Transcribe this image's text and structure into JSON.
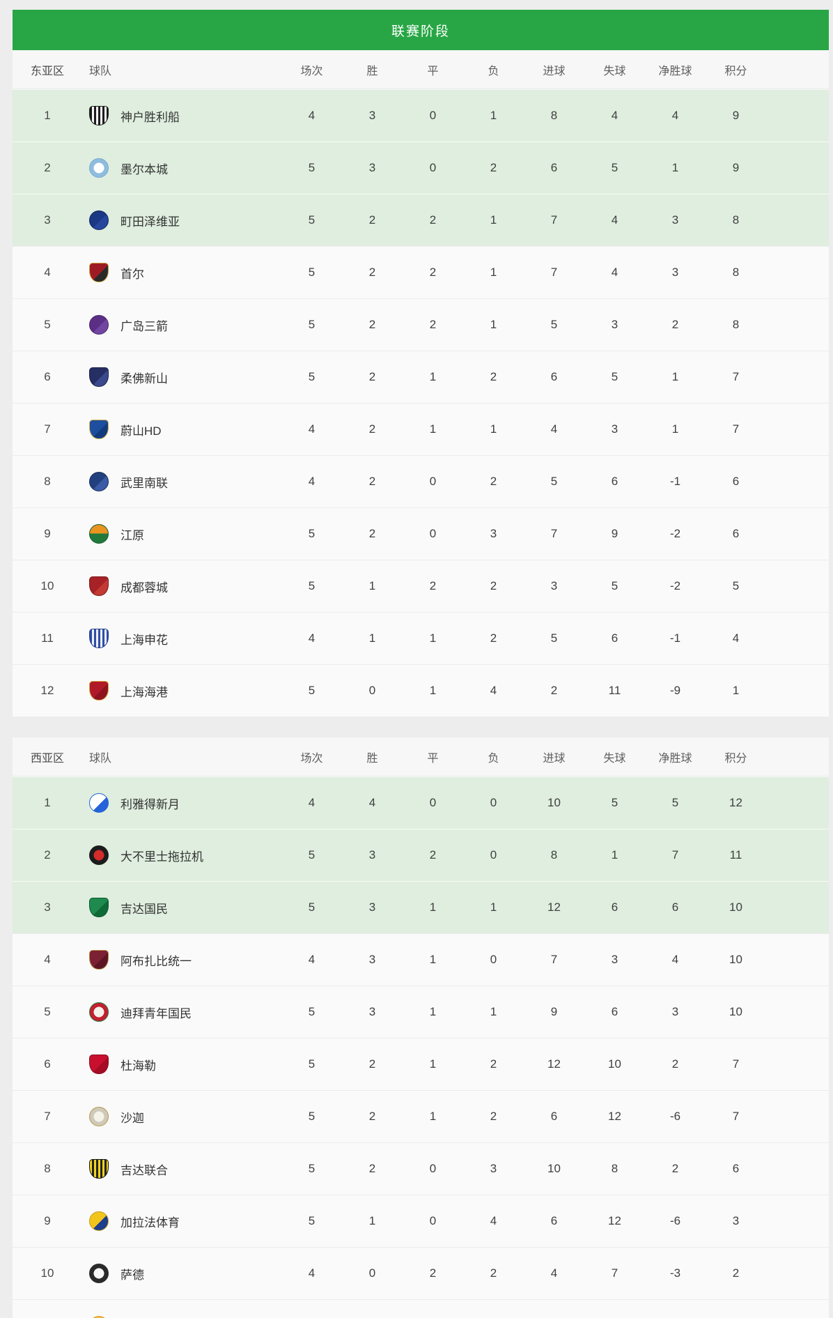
{
  "title": "联赛阶段",
  "team_column_label": "球队",
  "columns": [
    {
      "key": "matches",
      "label": "场次"
    },
    {
      "key": "wins",
      "label": "胜"
    },
    {
      "key": "draws",
      "label": "平"
    },
    {
      "key": "losses",
      "label": "负"
    },
    {
      "key": "goals_for",
      "label": "进球"
    },
    {
      "key": "goals_against",
      "label": "失球"
    },
    {
      "key": "goal_diff",
      "label": "净胜球"
    },
    {
      "key": "points",
      "label": "积分"
    }
  ],
  "colors": {
    "title_bar_green": "#28a645",
    "highlight_row_green": "#dfeede",
    "row_background": "#fafafa",
    "page_background": "#ededed"
  },
  "chart_data": {
    "type": "table",
    "title": "联赛阶段",
    "columns": [
      "场次",
      "胜",
      "平",
      "负",
      "进球",
      "失球",
      "净胜球",
      "积分"
    ],
    "notes": "Two standings groups: 东亚区 (12 teams) and 西亚区 (10 teams); top-3 rows of each group highlighted green"
  },
  "sections": [
    {
      "zone_label": "东亚区",
      "teams": [
        {
          "rank": 1,
          "name": "神户胜利船",
          "highlight": true,
          "logo": {
            "shape": "shield",
            "pattern": "stripes",
            "primary": "#1d1d1d",
            "secondary": "#f5f5f5",
            "border": "#1d1d1d"
          },
          "stats": [
            4,
            3,
            0,
            1,
            8,
            4,
            4,
            9
          ]
        },
        {
          "rank": 2,
          "name": "墨尔本城",
          "highlight": true,
          "logo": {
            "shape": "circle",
            "pattern": "ring",
            "primary": "#8fbcdf",
            "secondary": "#ffffff",
            "border": "#7aa9d4"
          },
          "stats": [
            5,
            3,
            0,
            2,
            6,
            5,
            1,
            9
          ]
        },
        {
          "rank": 3,
          "name": "町田泽维亚",
          "highlight": true,
          "logo": {
            "shape": "circle",
            "pattern": "plain",
            "primary": "#1b3884",
            "secondary": "#27479e",
            "border": "#12265e"
          },
          "stats": [
            5,
            2,
            2,
            1,
            7,
            4,
            3,
            8
          ]
        },
        {
          "rank": 4,
          "name": "首尔",
          "highlight": false,
          "logo": {
            "shape": "shield",
            "pattern": "plain",
            "primary": "#9e1b23",
            "secondary": "#2a2a2a",
            "border": "#caa43c"
          },
          "stats": [
            5,
            2,
            2,
            1,
            7,
            4,
            3,
            8
          ]
        },
        {
          "rank": 5,
          "name": "广岛三箭",
          "highlight": false,
          "logo": {
            "shape": "circle",
            "pattern": "plain",
            "primary": "#5c2f87",
            "secondary": "#7246a0",
            "border": "#47246b"
          },
          "stats": [
            5,
            2,
            2,
            1,
            5,
            3,
            2,
            8
          ]
        },
        {
          "rank": 6,
          "name": "柔佛新山",
          "highlight": false,
          "logo": {
            "shape": "shield",
            "pattern": "plain",
            "primary": "#252f63",
            "secondary": "#3a4a8c",
            "border": "#1a2248"
          },
          "stats": [
            5,
            2,
            1,
            2,
            6,
            5,
            1,
            7
          ]
        },
        {
          "rank": 7,
          "name": "蔚山HD",
          "highlight": false,
          "logo": {
            "shape": "shield",
            "pattern": "plain",
            "primary": "#1d4f9e",
            "secondary": "#123c7e",
            "border": "#d9b64a"
          },
          "stats": [
            4,
            2,
            1,
            1,
            4,
            3,
            1,
            7
          ]
        },
        {
          "rank": 8,
          "name": "武里南联",
          "highlight": false,
          "logo": {
            "shape": "circle",
            "pattern": "plain",
            "primary": "#23407e",
            "secondary": "#3a5ba6",
            "border": "#182c58"
          },
          "stats": [
            4,
            2,
            0,
            2,
            5,
            6,
            -1,
            6
          ]
        },
        {
          "rank": 9,
          "name": "江原",
          "highlight": false,
          "logo": {
            "shape": "circle",
            "pattern": "split",
            "primary": "#e8941f",
            "secondary": "#217a3c",
            "border": "#185c2c"
          },
          "stats": [
            5,
            2,
            0,
            3,
            7,
            9,
            -2,
            6
          ]
        },
        {
          "rank": 10,
          "name": "成都蓉城",
          "highlight": false,
          "logo": {
            "shape": "shield",
            "pattern": "plain",
            "primary": "#a62226",
            "secondary": "#c23a33",
            "border": "#7e161a"
          },
          "stats": [
            5,
            1,
            2,
            2,
            3,
            5,
            -2,
            5
          ]
        },
        {
          "rank": 11,
          "name": "上海申花",
          "highlight": false,
          "logo": {
            "shape": "shield",
            "pattern": "stripes",
            "primary": "#2d4da8",
            "secondary": "#f0f0f5",
            "border": "#24408e"
          },
          "stats": [
            4,
            1,
            1,
            2,
            5,
            6,
            -1,
            4
          ]
        },
        {
          "rank": 12,
          "name": "上海海港",
          "highlight": false,
          "logo": {
            "shape": "shield",
            "pattern": "plain",
            "primary": "#b01a28",
            "secondary": "#8e1220",
            "border": "#d4a63c"
          },
          "stats": [
            5,
            0,
            1,
            4,
            2,
            11,
            -9,
            1
          ]
        }
      ]
    },
    {
      "zone_label": "西亚区",
      "teams": [
        {
          "rank": 1,
          "name": "利雅得新月",
          "highlight": true,
          "logo": {
            "shape": "circle",
            "pattern": "plain",
            "primary": "#ffffff",
            "secondary": "#2563d9",
            "border": "#2563d9"
          },
          "stats": [
            4,
            4,
            0,
            0,
            10,
            5,
            5,
            12
          ]
        },
        {
          "rank": 2,
          "name": "大不里士拖拉机",
          "highlight": true,
          "logo": {
            "shape": "circle",
            "pattern": "ring",
            "primary": "#1c1c1c",
            "secondary": "#d42b2b",
            "border": "#1c1c1c"
          },
          "stats": [
            5,
            3,
            2,
            0,
            8,
            1,
            7,
            11
          ]
        },
        {
          "rank": 3,
          "name": "吉达国民",
          "highlight": true,
          "logo": {
            "shape": "shield",
            "pattern": "plain",
            "primary": "#1f8a4d",
            "secondary": "#0e6a37",
            "border": "#0c5a2e"
          },
          "stats": [
            5,
            3,
            1,
            1,
            12,
            6,
            6,
            10
          ]
        },
        {
          "rank": 4,
          "name": "阿布扎比统一",
          "highlight": false,
          "logo": {
            "shape": "shield",
            "pattern": "plain",
            "primary": "#7c2033",
            "secondary": "#5d1525",
            "border": "#b08a3e"
          },
          "stats": [
            4,
            3,
            1,
            0,
            7,
            3,
            4,
            10
          ]
        },
        {
          "rank": 5,
          "name": "迪拜青年国民",
          "highlight": false,
          "logo": {
            "shape": "circle",
            "pattern": "ring",
            "primary": "#c32030",
            "secondary": "#f2f2ea",
            "border": "#1e7a3c"
          },
          "stats": [
            5,
            3,
            1,
            1,
            9,
            6,
            3,
            10
          ]
        },
        {
          "rank": 6,
          "name": "杜海勒",
          "highlight": false,
          "logo": {
            "shape": "shield",
            "pattern": "plain",
            "primary": "#c8102e",
            "secondary": "#a50d25",
            "border": "#8c0a1f"
          },
          "stats": [
            5,
            2,
            1,
            2,
            12,
            10,
            2,
            7
          ]
        },
        {
          "rank": 7,
          "name": "沙迦",
          "highlight": false,
          "logo": {
            "shape": "circle",
            "pattern": "ring",
            "primary": "#cfc9ba",
            "secondary": "#f5f2e8",
            "border": "#b89a4a"
          },
          "stats": [
            5,
            2,
            1,
            2,
            6,
            12,
            -6,
            7
          ]
        },
        {
          "rank": 8,
          "name": "吉达联合",
          "highlight": false,
          "logo": {
            "shape": "shield",
            "pattern": "stripes",
            "primary": "#f2d21f",
            "secondary": "#222222",
            "border": "#111111"
          },
          "stats": [
            5,
            2,
            0,
            3,
            10,
            8,
            2,
            6
          ]
        },
        {
          "rank": 9,
          "name": "加拉法体育",
          "highlight": false,
          "logo": {
            "shape": "circle",
            "pattern": "plain",
            "primary": "#f2c51c",
            "secondary": "#1d3e8c",
            "border": "#c89c14"
          },
          "stats": [
            5,
            1,
            0,
            4,
            6,
            12,
            -6,
            3
          ]
        },
        {
          "rank": 10,
          "name": "萨德",
          "highlight": false,
          "logo": {
            "shape": "circle",
            "pattern": "ring",
            "primary": "#2a2a2a",
            "secondary": "#f8f8f8",
            "border": "#2a2a2a"
          },
          "stats": [
            4,
            0,
            2,
            2,
            4,
            7,
            -3,
            2
          ]
        }
      ],
      "partial_row": {
        "logo": {
          "shape": "circle",
          "pattern": "plain",
          "primary": "#f0b840",
          "secondary": "#e8883c",
          "border": "#d8a030"
        }
      }
    }
  ]
}
